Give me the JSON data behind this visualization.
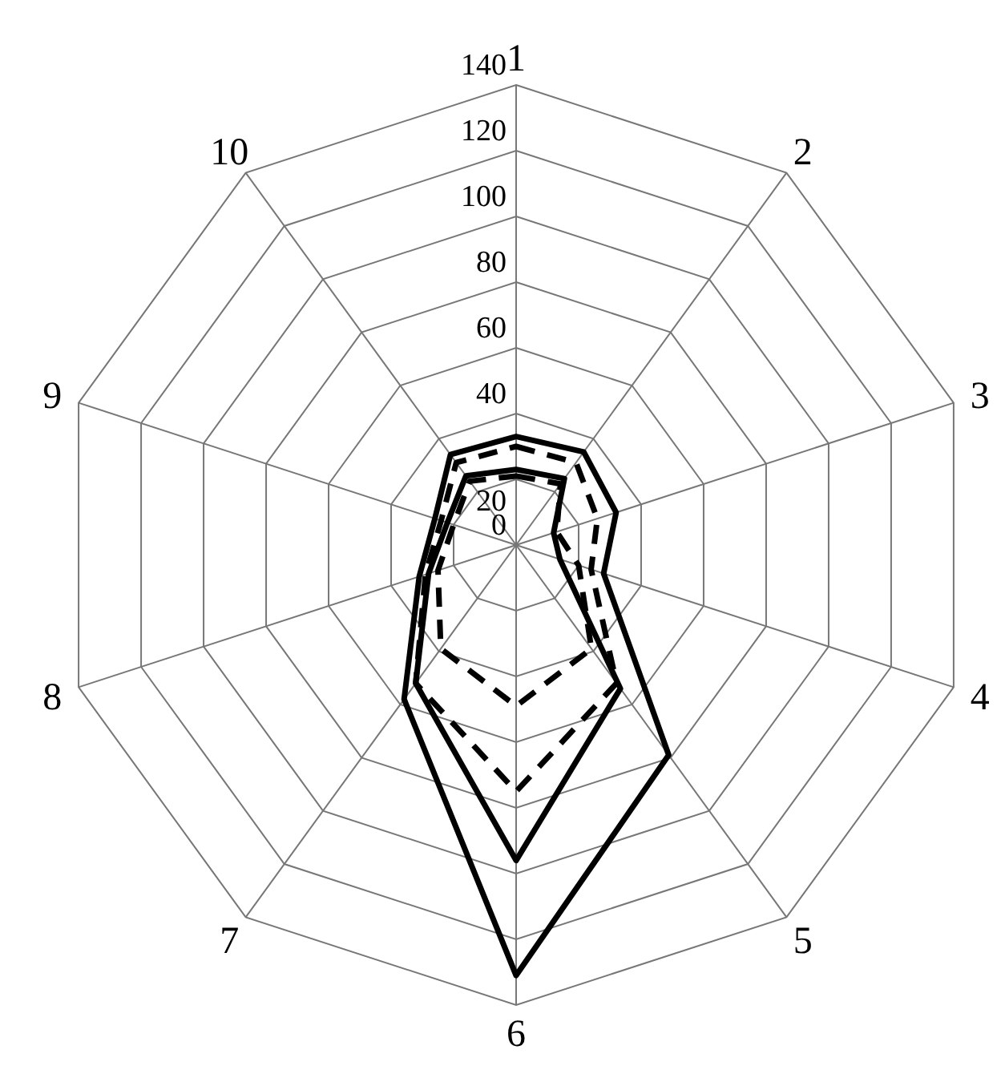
{
  "chart_data": {
    "type": "radar",
    "categories": [
      "1",
      "2",
      "3",
      "4",
      "5",
      "6",
      "7",
      "8",
      "9",
      "10"
    ],
    "ylim": [
      0,
      140
    ],
    "yticks": [
      0,
      20,
      40,
      60,
      80,
      100,
      120,
      140
    ],
    "grid": true,
    "marker": "none",
    "series": [
      {
        "color": "#000000",
        "line_style": "solid",
        "values": [
          33,
          35,
          32,
          28,
          79,
          131,
          58,
          31,
          26,
          34
        ]
      },
      {
        "color": "#000000",
        "line_style": "dashed",
        "values": [
          30,
          31,
          26,
          24,
          52,
          75,
          52,
          29,
          24,
          31
        ]
      },
      {
        "color": "#000000",
        "line_style": "solid",
        "values": [
          23,
          25,
          12,
          14,
          54,
          96,
          52,
          28,
          22,
          26
        ]
      },
      {
        "color": "#000000",
        "line_style": "dashed",
        "values": [
          21,
          23,
          13,
          20,
          39,
          49,
          39,
          25,
          20,
          24
        ]
      }
    ]
  }
}
